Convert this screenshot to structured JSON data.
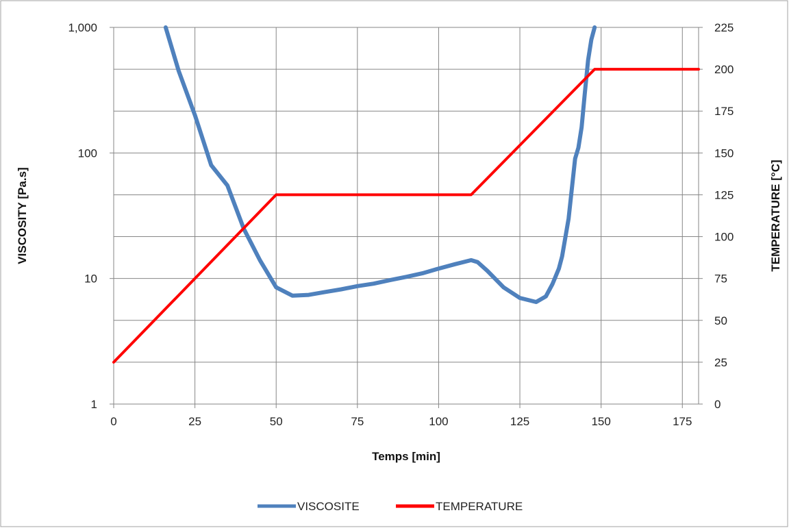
{
  "chart_data": {
    "type": "line",
    "xlabel": "Temps [min]",
    "ylabel_left": "VISCOSITY [Pa.s]",
    "ylabel_right": "TEMPERATURE [°C]",
    "xlim": [
      0,
      180
    ],
    "ylim_left": [
      1,
      1000
    ],
    "ylim_right": [
      0,
      225
    ],
    "left_scale": "log",
    "grid": true,
    "legend_position": "bottom",
    "x_ticks": [
      "0",
      "25",
      "50",
      "75",
      "100",
      "125",
      "150",
      "175"
    ],
    "y_left_ticks": [
      "1",
      "10",
      "100",
      "1,000"
    ],
    "y_right_ticks": [
      "0",
      "25",
      "50",
      "75",
      "100",
      "125",
      "150",
      "175",
      "200",
      "225"
    ],
    "series": [
      {
        "name": "VISCOSITE",
        "axis": "left",
        "color": "#4f81bd",
        "x": [
          16,
          20,
          25,
          30,
          35,
          40,
          45,
          50,
          55,
          60,
          65,
          70,
          75,
          80,
          85,
          90,
          95,
          100,
          105,
          110,
          112,
          115,
          120,
          125,
          130,
          133,
          135,
          137,
          138,
          140,
          142,
          143,
          144,
          145,
          146,
          147,
          148
        ],
        "y": [
          1000,
          450,
          200,
          80,
          55,
          25,
          14,
          8.5,
          7.3,
          7.4,
          7.8,
          8.2,
          8.7,
          9.1,
          9.7,
          10.3,
          11,
          12,
          13,
          14,
          13.5,
          11.5,
          8.5,
          7,
          6.5,
          7.2,
          9,
          12,
          15,
          30,
          90,
          110,
          160,
          300,
          550,
          800,
          1000
        ]
      },
      {
        "name": "TEMPERATURE",
        "axis": "right",
        "color": "#ff0000",
        "x": [
          0,
          50,
          110,
          148,
          180
        ],
        "y": [
          25,
          125,
          125,
          200,
          200
        ]
      }
    ]
  }
}
